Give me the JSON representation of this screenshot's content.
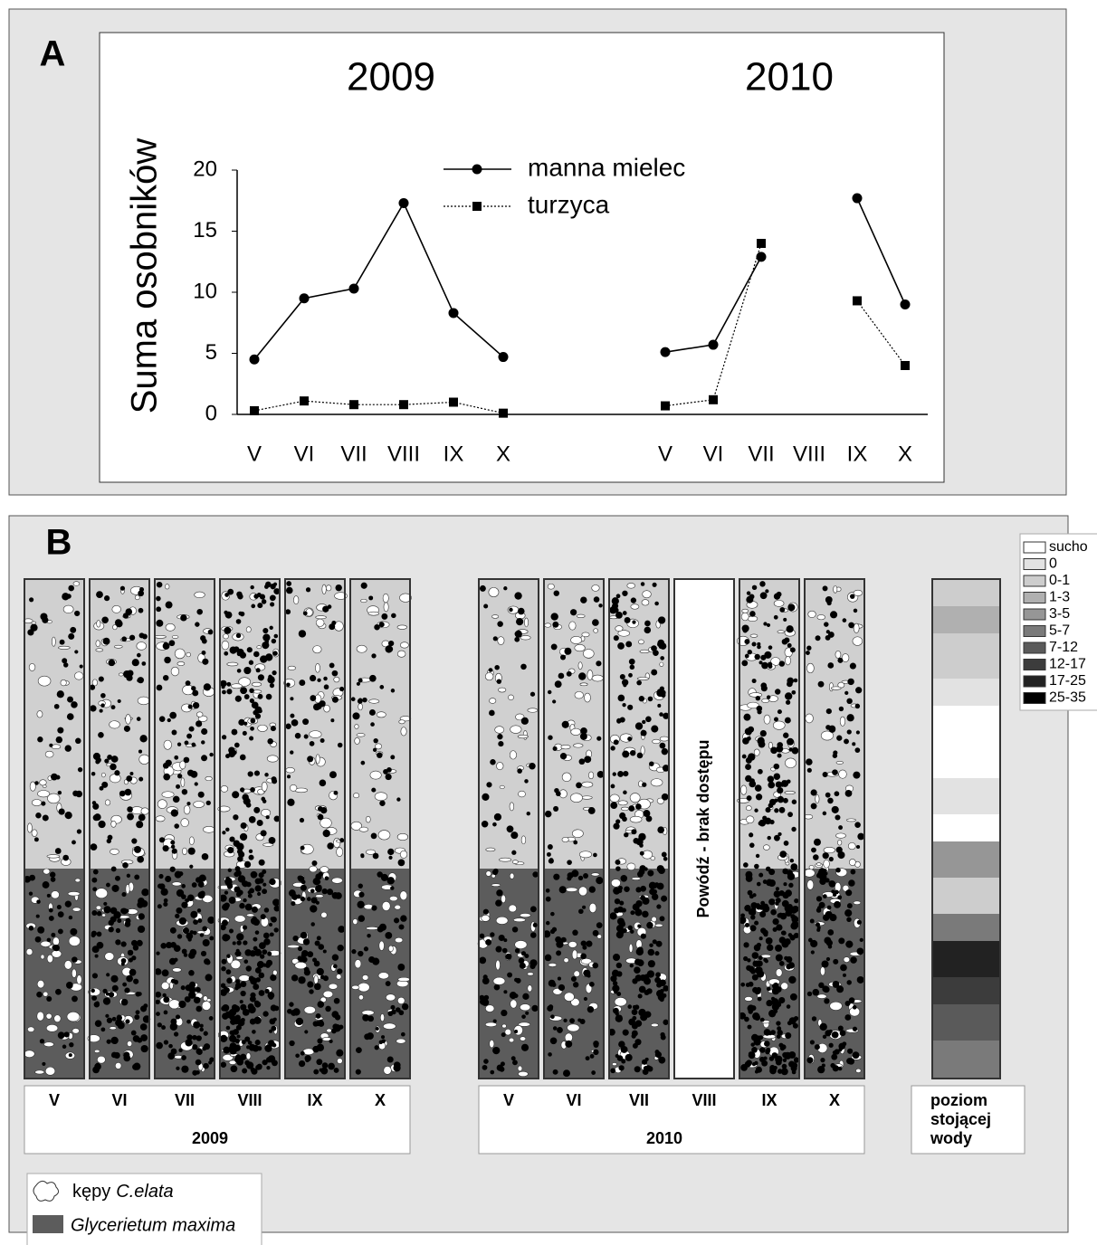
{
  "panel_a_label": "A",
  "chart_data": [
    {
      "type": "line",
      "title": "2009",
      "y_label": "Suma osobników",
      "categories": [
        "V",
        "VI",
        "VII",
        "VIII",
        "IX",
        "X"
      ],
      "series": [
        {
          "name": "manna mielec",
          "color": "#000000",
          "marker": "circle",
          "dash": "solid",
          "values": [
            4.5,
            9.5,
            10.3,
            17.3,
            8.3,
            4.7
          ]
        },
        {
          "name": "turzyca",
          "color": "#000000",
          "marker": "square",
          "dash": "dotted",
          "values": [
            0.3,
            1.1,
            0.8,
            0.8,
            1.0,
            0.1
          ]
        }
      ],
      "ylim": [
        0,
        20
      ],
      "yticks": [
        0,
        5,
        10,
        15,
        20
      ]
    },
    {
      "type": "line",
      "title": "2010",
      "categories": [
        "V",
        "VI",
        "VII",
        "VIII",
        "IX",
        "X"
      ],
      "series": [
        {
          "color": "#000000",
          "marker": "circle",
          "dash": "solid",
          "values": [
            5.1,
            5.7,
            12.9,
            null,
            17.7,
            9.0
          ]
        },
        {
          "color": "#000000",
          "marker": "square",
          "dash": "dotted",
          "values": [
            0.7,
            1.2,
            14.0,
            null,
            9.3,
            4.0
          ]
        }
      ],
      "ylim": [
        0,
        20
      ]
    }
  ],
  "panel_b": {
    "label": "B",
    "years": [
      {
        "label": "2009",
        "months": [
          "V",
          "VI",
          "VII",
          "VIII",
          "IX",
          "X"
        ]
      },
      {
        "label": "2010",
        "months": [
          "V",
          "VI",
          "VII",
          "VIII",
          "IX",
          "X"
        ]
      }
    ],
    "flood_note": "Powódź - brak dostępu",
    "water_label": [
      "poziom",
      "stojącej",
      "wody"
    ],
    "depth_legend": [
      {
        "label": "sucho",
        "color": "#ffffff"
      },
      {
        "label": "0",
        "color": "#e2e2e2"
      },
      {
        "label": "0-1",
        "color": "#cdcdcd"
      },
      {
        "label": "1-3",
        "color": "#b0b0b0"
      },
      {
        "label": "3-5",
        "color": "#969696"
      },
      {
        "label": "5-7",
        "color": "#7a7a7a"
      },
      {
        "label": "7-12",
        "color": "#5a5a5a"
      },
      {
        "label": "12-17",
        "color": "#3c3c3c"
      },
      {
        "label": "17-25",
        "color": "#222222"
      },
      {
        "label": "25-35",
        "color": "#000000"
      }
    ],
    "legend": [
      {
        "text": "kępy",
        "species": "C.elata"
      },
      {
        "species": "Glycerietum maxima"
      }
    ]
  }
}
